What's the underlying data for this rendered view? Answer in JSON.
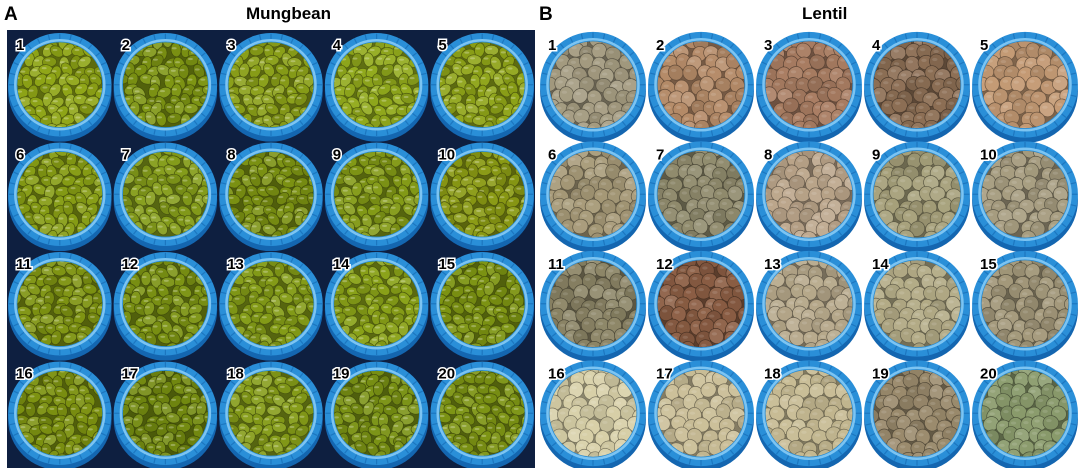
{
  "panels": [
    {
      "letter": "A",
      "title": "Mungbean",
      "seed_type": "mungbean",
      "background_color": "#0e1f40",
      "samples": [
        {
          "label": "1",
          "seed_color": "#8fa516"
        },
        {
          "label": "2",
          "seed_color": "#7e9513"
        },
        {
          "label": "3",
          "seed_color": "#8a9f18"
        },
        {
          "label": "4",
          "seed_color": "#92aa1c"
        },
        {
          "label": "5",
          "seed_color": "#8fa418"
        },
        {
          "label": "6",
          "seed_color": "#869c14"
        },
        {
          "label": "7",
          "seed_color": "#859d1a"
        },
        {
          "label": "8",
          "seed_color": "#7b9112"
        },
        {
          "label": "9",
          "seed_color": "#839a16"
        },
        {
          "label": "10",
          "seed_color": "#8a9a14"
        },
        {
          "label": "11",
          "seed_color": "#7f9412"
        },
        {
          "label": "12",
          "seed_color": "#7c9313"
        },
        {
          "label": "13",
          "seed_color": "#849c17"
        },
        {
          "label": "14",
          "seed_color": "#8aa218"
        },
        {
          "label": "15",
          "seed_color": "#7d9412"
        },
        {
          "label": "16",
          "seed_color": "#7d9211"
        },
        {
          "label": "17",
          "seed_color": "#738a10"
        },
        {
          "label": "18",
          "seed_color": "#859c18"
        },
        {
          "label": "19",
          "seed_color": "#7a9214"
        },
        {
          "label": "20",
          "seed_color": "#7d9414"
        }
      ]
    },
    {
      "letter": "B",
      "title": "Lentil",
      "seed_type": "lentil",
      "background_color": "#ffffff",
      "samples": [
        {
          "label": "1",
          "seed_color": "#a39a7f"
        },
        {
          "label": "2",
          "seed_color": "#b58b68"
        },
        {
          "label": "3",
          "seed_color": "#a97d62"
        },
        {
          "label": "4",
          "seed_color": "#8d6f55"
        },
        {
          "label": "5",
          "seed_color": "#c49a74"
        },
        {
          "label": "6",
          "seed_color": "#a79a78"
        },
        {
          "label": "7",
          "seed_color": "#8f8a6c"
        },
        {
          "label": "8",
          "seed_color": "#bba58a"
        },
        {
          "label": "9",
          "seed_color": "#a6a07a"
        },
        {
          "label": "10",
          "seed_color": "#a69c7f"
        },
        {
          "label": "11",
          "seed_color": "#8c8566"
        },
        {
          "label": "12",
          "seed_color": "#8c5e44"
        },
        {
          "label": "13",
          "seed_color": "#b6a88a"
        },
        {
          "label": "14",
          "seed_color": "#b3ab86"
        },
        {
          "label": "15",
          "seed_color": "#a3987a"
        },
        {
          "label": "16",
          "seed_color": "#d8d0a8"
        },
        {
          "label": "17",
          "seed_color": "#cbbf98"
        },
        {
          "label": "18",
          "seed_color": "#c7bb93"
        },
        {
          "label": "19",
          "seed_color": "#9a8a6c"
        },
        {
          "label": "20",
          "seed_color": "#8a9b6c"
        }
      ]
    }
  ],
  "colors": {
    "cup_ring": "#2a8fd8",
    "cup_ring_dark": "#1466b0",
    "cup_rim_light": "#7cc4f2"
  }
}
